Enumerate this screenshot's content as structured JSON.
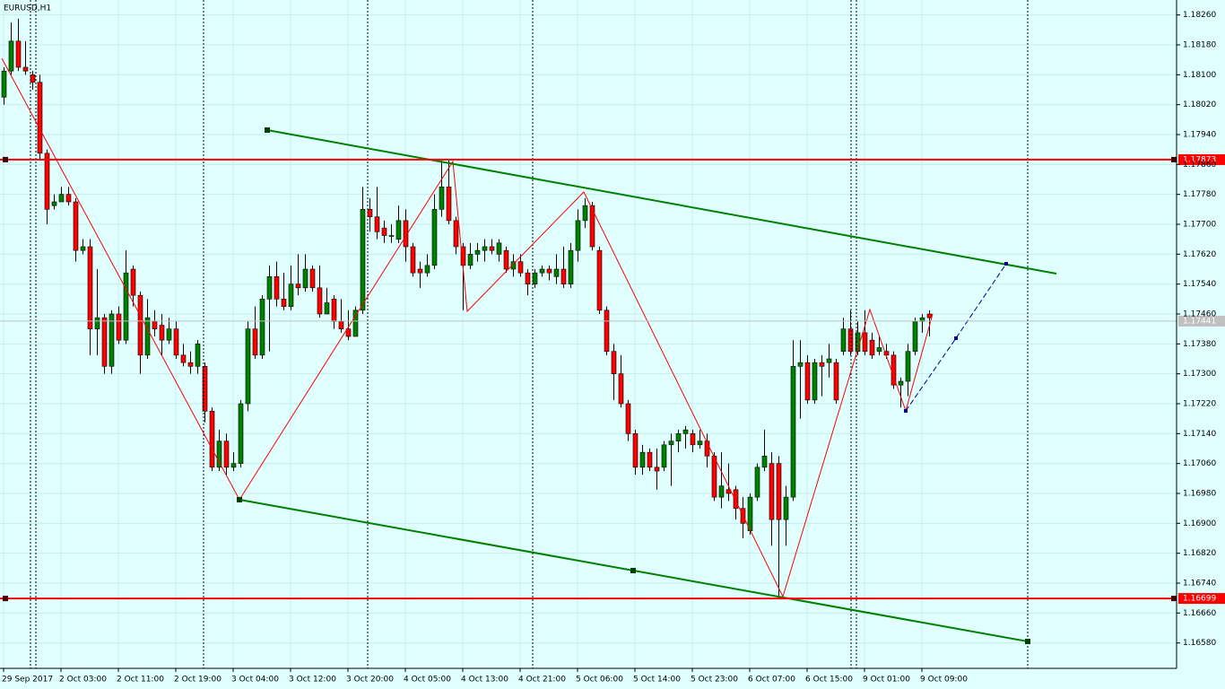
{
  "chart_data": {
    "type": "candlestick",
    "title": "EURUSD,H1",
    "categories": [
      "29 Sep 2017",
      null,
      null,
      null,
      null,
      null,
      null,
      null,
      "2 Oct 03:00",
      null,
      null,
      null,
      null,
      null,
      null,
      null,
      "2 Oct 11:00",
      null,
      null,
      null,
      null,
      null,
      null,
      null,
      "2 Oct 19:00",
      null,
      null,
      null,
      null,
      null,
      null,
      null,
      "3 Oct 04:00",
      null,
      null,
      null,
      null,
      null,
      null,
      null,
      "3 Oct 12:00",
      null,
      null,
      null,
      null,
      null,
      null,
      null,
      "3 Oct 20:00",
      null,
      null,
      null,
      null,
      null,
      null,
      null,
      "4 Oct 05:00",
      null,
      null,
      null,
      null,
      null,
      null,
      null,
      "4 Oct 13:00",
      null,
      null,
      null,
      null,
      null,
      null,
      null,
      "4 Oct 21:00",
      null,
      null,
      null,
      null,
      null,
      null,
      null,
      "5 Oct 06:00",
      null,
      null,
      null,
      null,
      null,
      null,
      null,
      "5 Oct 14:00",
      null,
      null,
      null,
      null,
      null,
      null,
      null,
      "5 Oct 23:00",
      null,
      null,
      null,
      null,
      null,
      null,
      null,
      "6 Oct 07:00",
      null,
      null,
      null,
      null,
      null,
      null,
      null,
      "6 Oct 15:00",
      null,
      null,
      null,
      null,
      null,
      null,
      null,
      "9 Oct 01:00",
      null,
      null,
      null,
      null,
      null,
      null,
      null,
      "9 Oct 09:00",
      null
    ],
    "open": [
      1.1804,
      1.1811,
      1.1819,
      1.1812,
      1.181,
      1.1808,
      1.1789,
      1.1775,
      1.1776,
      1.1778,
      1.1776,
      1.1763,
      1.1764,
      1.1742,
      1.1745,
      1.1732,
      1.1746,
      1.1739,
      1.1758,
      1.1751,
      1.1735,
      1.1744,
      1.1743,
      1.1739,
      1.1742,
      1.1735,
      1.1733,
      1.1732,
      1.1732,
      1.172,
      1.1705,
      1.1712,
      1.1705,
      1.1706,
      1.1722,
      1.1742,
      1.1735,
      1.175,
      1.1756,
      1.175,
      1.1748,
      1.1754,
      1.1753,
      1.1758,
      1.1753,
      1.1746,
      1.175,
      1.1744,
      1.1742,
      1.174,
      1.1747,
      1.1774,
      1.1772,
      1.1769,
      1.1767,
      1.1766,
      1.1771,
      1.1764,
      1.1758,
      1.1757,
      1.1759,
      1.1774,
      1.178,
      1.1771,
      1.1764,
      1.1759,
      1.1762,
      1.1763,
      1.1764,
      1.1762,
      1.1763,
      1.1758,
      1.176,
      1.1757,
      1.1754,
      1.1757,
      1.1758,
      1.1756,
      1.1758,
      1.1754,
      1.1763,
      1.1771,
      1.1775,
      1.1763,
      1.1747,
      1.1736,
      1.173,
      1.1722,
      1.1714,
      1.1705,
      1.1709,
      1.1705,
      1.1705,
      1.1711,
      1.1712,
      1.1714,
      1.1714,
      1.1711,
      1.1712,
      1.1708,
      1.1697,
      1.1699,
      1.1699,
      1.1694,
      1.1688,
      1.1697,
      1.1705,
      1.1706,
      1.1706,
      1.1691,
      1.1697,
      1.1732,
      1.1733,
      1.1723,
      1.1733,
      1.1733,
      1.1733,
      1.1736,
      1.1742,
      1.1736,
      1.1741,
      1.1739,
      1.1736,
      1.1736,
      1.1735,
      1.1727,
      1.1728,
      1.1736,
      1.1744,
      1.1746
    ],
    "high": [
      1.1812,
      1.1824,
      1.1825,
      1.1819,
      1.1811,
      1.181,
      1.179,
      1.1778,
      1.178,
      1.178,
      1.1777,
      1.1766,
      1.1766,
      1.1758,
      1.1746,
      1.1747,
      1.1748,
      1.1763,
      1.1759,
      1.1752,
      1.175,
      1.1747,
      1.1746,
      1.1745,
      1.1744,
      1.1738,
      1.1736,
      1.1739,
      1.1733,
      1.1721,
      1.1715,
      1.1714,
      1.1709,
      1.1723,
      1.1744,
      1.1748,
      1.1751,
      1.1759,
      1.176,
      1.1757,
      1.1759,
      1.1762,
      1.1762,
      1.1759,
      1.1759,
      1.1753,
      1.1751,
      1.175,
      1.1747,
      1.1748,
      1.178,
      1.1777,
      1.178,
      1.1771,
      1.177,
      1.1775,
      1.1774,
      1.1765,
      1.176,
      1.1762,
      1.1778,
      1.1787,
      1.1787,
      1.1772,
      1.1765,
      1.1765,
      1.1765,
      1.1766,
      1.1766,
      1.1766,
      1.1764,
      1.1762,
      1.1762,
      1.1758,
      1.1758,
      1.1759,
      1.1759,
      1.1762,
      1.1764,
      1.1765,
      1.1774,
      1.1777,
      1.1776,
      1.1764,
      1.1748,
      1.1738,
      1.1735,
      1.1723,
      1.1715,
      1.1711,
      1.171,
      1.171,
      1.1712,
      1.1714,
      1.1715,
      1.1716,
      1.1715,
      1.1715,
      1.1714,
      1.1709,
      1.1709,
      1.1706,
      1.17,
      1.1697,
      1.1698,
      1.1706,
      1.1715,
      1.1709,
      1.1708,
      1.17,
      1.1739,
      1.1739,
      1.1735,
      1.1734,
      1.1735,
      1.1738,
      1.1734,
      1.1745,
      1.1747,
      1.1744,
      1.1747,
      1.1741,
      1.174,
      1.1738,
      1.1736,
      1.1729,
      1.1738,
      1.1745,
      1.1746,
      1.1747
    ],
    "low": [
      1.1802,
      1.181,
      1.1811,
      1.181,
      1.1806,
      1.1787,
      1.177,
      1.1774,
      1.1776,
      1.1775,
      1.176,
      1.1762,
      1.1735,
      1.1735,
      1.173,
      1.173,
      1.1738,
      1.1738,
      1.1748,
      1.173,
      1.1734,
      1.174,
      1.1735,
      1.1738,
      1.1734,
      1.1732,
      1.173,
      1.173,
      1.1717,
      1.1704,
      1.1704,
      1.1703,
      1.1704,
      1.1705,
      1.172,
      1.1734,
      1.1734,
      1.1736,
      1.1748,
      1.1747,
      1.1747,
      1.1751,
      1.1752,
      1.1752,
      1.1745,
      1.1747,
      1.1742,
      1.1741,
      1.1739,
      1.174,
      1.1746,
      1.1768,
      1.1766,
      1.1765,
      1.1765,
      1.1765,
      1.176,
      1.1756,
      1.1753,
      1.1756,
      1.1758,
      1.1772,
      1.177,
      1.1762,
      1.1747,
      1.1758,
      1.176,
      1.176,
      1.1762,
      1.176,
      1.1757,
      1.1756,
      1.1756,
      1.1751,
      1.1753,
      1.1756,
      1.1755,
      1.1754,
      1.1753,
      1.1753,
      1.176,
      1.1769,
      1.1763,
      1.1746,
      1.1735,
      1.1723,
      1.1721,
      1.1712,
      1.1703,
      1.1703,
      1.1704,
      1.1699,
      1.1704,
      1.17,
      1.1709,
      1.171,
      1.1709,
      1.171,
      1.1705,
      1.1696,
      1.1694,
      1.1696,
      1.1691,
      1.1686,
      1.1687,
      1.1696,
      1.1704,
      1.1684,
      1.167,
      1.1684,
      1.1696,
      1.1718,
      1.1722,
      1.1722,
      1.1724,
      1.1729,
      1.1722,
      1.1735,
      1.1735,
      1.1735,
      1.1735,
      1.1734,
      1.1735,
      1.1734,
      1.1726,
      1.1721,
      1.1724,
      1.1735,
      1.1741,
      1.174
    ],
    "close": [
      1.1811,
      1.1819,
      1.1812,
      1.1811,
      1.1808,
      1.1789,
      1.1774,
      1.1776,
      1.1778,
      1.1776,
      1.1763,
      1.1764,
      1.1742,
      1.1745,
      1.1732,
      1.1746,
      1.1739,
      1.1757,
      1.1751,
      1.1735,
      1.1745,
      1.1742,
      1.1739,
      1.1742,
      1.1735,
      1.1733,
      1.1732,
      1.1738,
      1.172,
      1.1705,
      1.1712,
      1.1705,
      1.1706,
      1.1722,
      1.1742,
      1.1735,
      1.175,
      1.1756,
      1.175,
      1.1748,
      1.1754,
      1.1753,
      1.1758,
      1.1753,
      1.1746,
      1.1749,
      1.1744,
      1.1742,
      1.174,
      1.1747,
      1.1774,
      1.1772,
      1.1768,
      1.1767,
      1.1767,
      1.1771,
      1.1764,
      1.1757,
      1.1757,
      1.1759,
      1.1774,
      1.178,
      1.1771,
      1.1764,
      1.1759,
      1.1762,
      1.1763,
      1.1764,
      1.1763,
      1.1765,
      1.1758,
      1.176,
      1.1757,
      1.1754,
      1.1757,
      1.1758,
      1.1757,
      1.1758,
      1.1754,
      1.1763,
      1.1771,
      1.1775,
      1.1764,
      1.1747,
      1.1736,
      1.173,
      1.1722,
      1.1714,
      1.1705,
      1.1709,
      1.1705,
      1.1704,
      1.1711,
      1.1712,
      1.1714,
      1.1715,
      1.1711,
      1.1712,
      1.1708,
      1.1697,
      1.17,
      1.1698,
      1.1694,
      1.169,
      1.1697,
      1.1705,
      1.1708,
      1.1691,
      1.1691,
      1.1697,
      1.1732,
      1.1733,
      1.1723,
      1.1733,
      1.1732,
      1.1734,
      1.1723,
      1.1742,
      1.1736,
      1.1741,
      1.1736,
      1.1735,
      1.1737,
      1.1735,
      1.1727,
      1.1728,
      1.1736,
      1.1744,
      1.1745,
      1.1745
    ],
    "up_color": "#008000",
    "down_color": "#ff0000",
    "ylim": [
      1.16512,
      1.183
    ],
    "yticks": [
      {
        "value": 1.1826,
        "label": "1.18260"
      },
      {
        "value": 1.1818,
        "label": "1.18180"
      },
      {
        "value": 1.181,
        "label": "1.18100"
      },
      {
        "value": 1.1802,
        "label": "1.18020"
      },
      {
        "value": 1.1794,
        "label": "1.17940"
      },
      {
        "value": 1.1786,
        "label": "1.17860"
      },
      {
        "value": 1.1778,
        "label": "1.17780"
      },
      {
        "value": 1.177,
        "label": "1.17700"
      },
      {
        "value": 1.1762,
        "label": "1.17620"
      },
      {
        "value": 1.1754,
        "label": "1.17540"
      },
      {
        "value": 1.1746,
        "label": "1.17460"
      },
      {
        "value": 1.1738,
        "label": "1.17380"
      },
      {
        "value": 1.173,
        "label": "1.17300"
      },
      {
        "value": 1.1722,
        "label": "1.17220"
      },
      {
        "value": 1.1714,
        "label": "1.17140"
      },
      {
        "value": 1.1706,
        "label": "1.17060"
      },
      {
        "value": 1.1698,
        "label": "1.16980"
      },
      {
        "value": 1.169,
        "label": "1.16900"
      },
      {
        "value": 1.1682,
        "label": "1.16820"
      },
      {
        "value": 1.1674,
        "label": "1.16740"
      },
      {
        "value": 1.1666,
        "label": "1.16660"
      },
      {
        "value": 1.1658,
        "label": "1.16580"
      }
    ],
    "grid": true,
    "hlines": [
      {
        "value": 1.17441,
        "color": "#c0c0c0"
      },
      {
        "value": 1.17873,
        "color": "#ff0000"
      },
      {
        "value": 1.16699,
        "color": "#ff0000"
      }
    ]
  }
}
